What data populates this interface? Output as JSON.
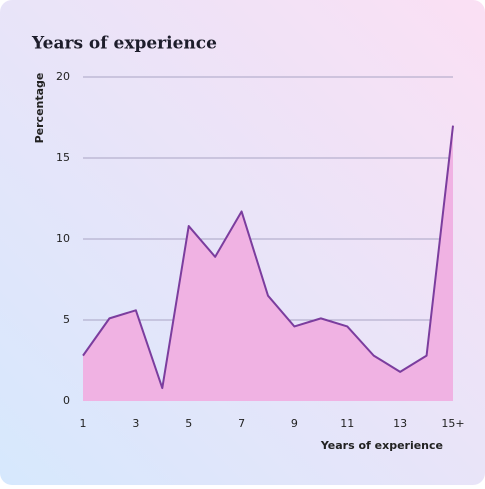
{
  "chart_data": {
    "type": "area",
    "title": "Years of experience",
    "x_label": "Years of experience",
    "y_label": "Percentage",
    "categories": [
      "1",
      null,
      "3",
      null,
      "5",
      null,
      "7",
      null,
      "9",
      null,
      "11",
      null,
      "13",
      null,
      "15+"
    ],
    "series": [
      {
        "name": "Percentage",
        "color": "#7b3d9e",
        "fill": "#f0b2e3",
        "values": [
          2.8,
          5.1,
          5.6,
          0.8,
          10.8,
          8.9,
          11.7,
          6.5,
          4.6,
          5.1,
          4.6,
          2.8,
          1.8,
          2.8,
          17
        ]
      }
    ],
    "ylim": [
      0,
      20
    ],
    "yticks": [
      0,
      5,
      10,
      15,
      20
    ],
    "grid": true
  }
}
